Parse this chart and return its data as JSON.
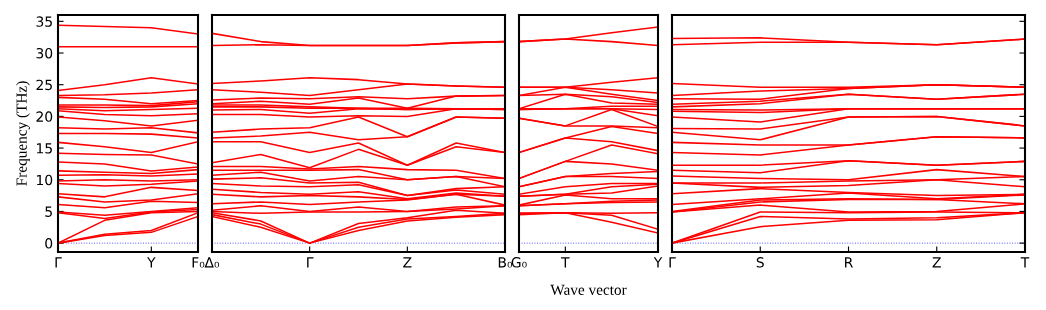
{
  "chart_data": [
    {
      "type": "line",
      "ylabel": "Frequency (THz)",
      "ylim": [
        -1.4,
        36
      ],
      "yticks": [
        0,
        5,
        10,
        15,
        20,
        25,
        30,
        35
      ],
      "categories": [
        "Γ",
        null,
        "Y",
        "F₀"
      ],
      "ref_lines": [
        {
          "axis": "y",
          "value": 0,
          "label": null,
          "color": "#4d4dff",
          "line_style": "dotted"
        }
      ],
      "series": [
        {
          "color": "#ff0000",
          "values": [
            0,
            1.2,
            1.7,
            4.2
          ]
        },
        {
          "color": "#ff0000",
          "values": [
            0,
            1.4,
            2.0,
            4.8
          ]
        },
        {
          "color": "#ff0000",
          "values": [
            0,
            3.6,
            4.8,
            5.0
          ]
        },
        {
          "color": "#ff0000",
          "values": [
            4.8,
            3.9,
            4.9,
            5.3
          ]
        },
        {
          "color": "#ff0000",
          "values": [
            4.9,
            4.4,
            5.0,
            5.6
          ]
        },
        {
          "color": "#ff0000",
          "values": [
            6.1,
            5.6,
            6.6,
            6.4
          ]
        },
        {
          "color": "#ff0000",
          "values": [
            7.3,
            6.5,
            6.8,
            7.8
          ]
        },
        {
          "color": "#ff0000",
          "values": [
            7.8,
            7.3,
            8.8,
            8.3
          ]
        },
        {
          "color": "#ff0000",
          "values": [
            9.4,
            9.0,
            9.3,
            9.8
          ]
        },
        {
          "color": "#ff0000",
          "values": [
            9.8,
            10.0,
            9.8,
            10.0
          ]
        },
        {
          "color": "#ff0000",
          "values": [
            10.7,
            10.8,
            10.6,
            10.9
          ]
        },
        {
          "color": "#ff0000",
          "values": [
            11.4,
            11.2,
            11.0,
            11.6
          ]
        },
        {
          "color": "#ff0000",
          "values": [
            12.8,
            12.5,
            11.4,
            12.0
          ]
        },
        {
          "color": "#ff0000",
          "values": [
            14.2,
            14.0,
            13.9,
            12.5
          ]
        },
        {
          "color": "#ff0000",
          "values": [
            15.9,
            15.2,
            14.3,
            16.0
          ]
        },
        {
          "color": "#ff0000",
          "values": [
            17.3,
            17.3,
            17.2,
            16.6
          ]
        },
        {
          "color": "#ff0000",
          "values": [
            18.2,
            18.0,
            18.2,
            17.4
          ]
        },
        {
          "color": "#ff0000",
          "values": [
            19.9,
            19.3,
            18.5,
            19.4
          ]
        },
        {
          "color": "#ff0000",
          "values": [
            20.9,
            20.3,
            20.1,
            20.4
          ]
        },
        {
          "color": "#ff0000",
          "values": [
            21.2,
            20.9,
            21.1,
            21.3
          ]
        },
        {
          "color": "#ff0000",
          "values": [
            21.5,
            21.4,
            21.5,
            22.0
          ]
        },
        {
          "color": "#ff0000",
          "values": [
            21.8,
            21.8,
            21.7,
            22.3
          ]
        },
        {
          "color": "#ff0000",
          "values": [
            23.0,
            22.7,
            22.0,
            22.5
          ]
        },
        {
          "color": "#ff0000",
          "values": [
            23.3,
            23.4,
            23.7,
            24.2
          ]
        },
        {
          "color": "#ff0000",
          "values": [
            24.1,
            25.0,
            26.1,
            25.1
          ]
        },
        {
          "color": "#ff0000",
          "values": [
            31.0,
            31.0,
            31.0,
            31.0
          ]
        },
        {
          "color": "#ff0000",
          "values": [
            34.4,
            34.2,
            34.0,
            33.0
          ]
        }
      ]
    },
    {
      "type": "line",
      "ylim": [
        -1.4,
        36
      ],
      "tick_labels": "x",
      "categories": [
        "Δ₀",
        null,
        "Γ",
        null,
        "Z",
        null,
        "B₀"
      ],
      "ref_lines": [
        {
          "axis": "y",
          "value": 0,
          "label": null,
          "color": "#4d4dff",
          "line_style": "dotted"
        }
      ],
      "series": [
        {
          "color": "#ff0000",
          "values": [
            4.2,
            2.5,
            0,
            2.0,
            3.5,
            4.1,
            4.5
          ]
        },
        {
          "color": "#ff0000",
          "values": [
            4.5,
            3.0,
            0,
            2.5,
            3.8,
            4.2,
            4.7
          ]
        },
        {
          "color": "#ff0000",
          "values": [
            4.8,
            3.5,
            0,
            3.1,
            4.0,
            5.2,
            4.7
          ]
        },
        {
          "color": "#ff0000",
          "values": [
            5.0,
            4.7,
            4.9,
            4.9,
            5.0,
            5.4,
            5.9
          ]
        },
        {
          "color": "#ff0000",
          "values": [
            5.2,
            5.9,
            5.0,
            5.7,
            5.0,
            5.7,
            5.9
          ]
        },
        {
          "color": "#ff0000",
          "values": [
            6.2,
            6.5,
            6.1,
            6.5,
            6.8,
            7.7,
            6.0
          ]
        },
        {
          "color": "#ff0000",
          "values": [
            7.7,
            7.3,
            7.5,
            7.3,
            6.9,
            7.7,
            7.4
          ]
        },
        {
          "color": "#ff0000",
          "values": [
            8.5,
            8.0,
            7.7,
            8.1,
            7.0,
            7.9,
            7.4
          ]
        },
        {
          "color": "#ff0000",
          "values": [
            9.4,
            9.0,
            8.9,
            9.2,
            7.5,
            8.4,
            7.7
          ]
        },
        {
          "color": "#ff0000",
          "values": [
            10.1,
            10.3,
            9.5,
            9.6,
            7.5,
            8.6,
            8.9
          ]
        },
        {
          "color": "#ff0000",
          "values": [
            10.7,
            11.2,
            9.8,
            10.5,
            10.0,
            10.5,
            8.9
          ]
        },
        {
          "color": "#ff0000",
          "values": [
            11.5,
            11.5,
            11.5,
            11.6,
            10.0,
            10.5,
            10.2
          ]
        },
        {
          "color": "#ff0000",
          "values": [
            12.1,
            12.1,
            11.7,
            12.1,
            11.6,
            11.5,
            10.2
          ]
        },
        {
          "color": "#ff0000",
          "values": [
            12.7,
            14.0,
            11.9,
            14.8,
            12.3,
            15.2,
            14.3
          ]
        },
        {
          "color": "#ff0000",
          "values": [
            16.0,
            16.0,
            14.3,
            15.8,
            12.3,
            15.8,
            14.3
          ]
        },
        {
          "color": "#ff0000",
          "values": [
            16.6,
            16.9,
            17.5,
            16.3,
            16.8,
            19.9,
            19.7
          ]
        },
        {
          "color": "#ff0000",
          "values": [
            17.5,
            18.0,
            18.2,
            19.9,
            16.8,
            19.9,
            19.7
          ]
        },
        {
          "color": "#ff0000",
          "values": [
            20.3,
            20.3,
            19.9,
            20.1,
            20.0,
            21.2,
            21.1
          ]
        },
        {
          "color": "#ff0000",
          "values": [
            21.0,
            21.1,
            20.5,
            21.2,
            21.1,
            21.2,
            21.1
          ]
        },
        {
          "color": "#ff0000",
          "values": [
            21.5,
            21.5,
            21.3,
            21.3,
            21.1,
            21.2,
            21.2
          ]
        },
        {
          "color": "#ff0000",
          "values": [
            21.8,
            21.8,
            21.5,
            21.3,
            21.3,
            21.2,
            21.2
          ]
        },
        {
          "color": "#ff0000",
          "values": [
            22.0,
            22.4,
            21.9,
            22.9,
            21.3,
            23.2,
            23.3
          ]
        },
        {
          "color": "#ff0000",
          "values": [
            22.6,
            22.9,
            22.8,
            23.1,
            22.8,
            23.2,
            23.3
          ]
        },
        {
          "color": "#ff0000",
          "values": [
            24.2,
            23.8,
            23.3,
            24.2,
            25.1,
            24.8,
            24.6
          ]
        },
        {
          "color": "#ff0000",
          "values": [
            25.2,
            25.6,
            26.1,
            25.8,
            25.1,
            24.8,
            24.6
          ]
        },
        {
          "color": "#ff0000",
          "values": [
            31.2,
            31.3,
            31.2,
            31.2,
            31.2,
            31.6,
            31.8
          ]
        },
        {
          "color": "#ff0000",
          "values": [
            33.1,
            31.8,
            31.2,
            31.2,
            31.2,
            31.6,
            31.8
          ]
        }
      ]
    },
    {
      "type": "line",
      "xlabel": "Wave vector",
      "ylim": [
        -1.4,
        36
      ],
      "tick_labels": "x",
      "categories": [
        "G₀",
        "T",
        null,
        "Y"
      ],
      "ref_lines": [
        {
          "axis": "y",
          "value": 0,
          "label": null,
          "color": "#4d4dff",
          "line_style": "dotted"
        }
      ],
      "series": [
        {
          "color": "#ff0000",
          "values": [
            4.5,
            4.8,
            3.3,
            1.6
          ]
        },
        {
          "color": "#ff0000",
          "values": [
            4.7,
            4.8,
            4.4,
            2.2
          ]
        },
        {
          "color": "#ff0000",
          "values": [
            4.7,
            4.8,
            4.7,
            4.8
          ]
        },
        {
          "color": "#ff0000",
          "values": [
            5.9,
            6.2,
            6.4,
            6.5
          ]
        },
        {
          "color": "#ff0000",
          "values": [
            5.9,
            6.2,
            6.6,
            6.8
          ]
        },
        {
          "color": "#ff0000",
          "values": [
            6.0,
            7.6,
            7.0,
            7.0
          ]
        },
        {
          "color": "#ff0000",
          "values": [
            7.4,
            7.7,
            7.9,
            9.0
          ]
        },
        {
          "color": "#ff0000",
          "values": [
            7.4,
            7.7,
            8.9,
            9.3
          ]
        },
        {
          "color": "#ff0000",
          "values": [
            7.7,
            8.9,
            9.4,
            9.4
          ]
        },
        {
          "color": "#ff0000",
          "values": [
            8.9,
            10.5,
            10.5,
            10.2
          ]
        },
        {
          "color": "#ff0000",
          "values": [
            8.9,
            10.5,
            11.0,
            11.3
          ]
        },
        {
          "color": "#ff0000",
          "values": [
            10.2,
            12.9,
            12.5,
            11.5
          ]
        },
        {
          "color": "#ff0000",
          "values": [
            10.2,
            12.9,
            15.5,
            14.1
          ]
        },
        {
          "color": "#ff0000",
          "values": [
            14.3,
            16.6,
            16.0,
            14.6
          ]
        },
        {
          "color": "#ff0000",
          "values": [
            14.3,
            16.6,
            18.4,
            17.3
          ]
        },
        {
          "color": "#ff0000",
          "values": [
            19.7,
            18.5,
            18.5,
            18.2
          ]
        },
        {
          "color": "#ff0000",
          "values": [
            19.7,
            18.5,
            21.1,
            18.4
          ]
        },
        {
          "color": "#ff0000",
          "values": [
            21.1,
            21.2,
            21.2,
            20.1
          ]
        },
        {
          "color": "#ff0000",
          "values": [
            21.1,
            21.2,
            21.2,
            21.1
          ]
        },
        {
          "color": "#ff0000",
          "values": [
            21.2,
            21.2,
            21.6,
            21.6
          ]
        },
        {
          "color": "#ff0000",
          "values": [
            21.2,
            23.5,
            22.1,
            21.9
          ]
        },
        {
          "color": "#ff0000",
          "values": [
            23.3,
            23.5,
            23.1,
            22.2
          ]
        },
        {
          "color": "#ff0000",
          "values": [
            23.3,
            24.6,
            23.5,
            22.5
          ]
        },
        {
          "color": "#ff0000",
          "values": [
            24.6,
            24.6,
            24.2,
            23.7
          ]
        },
        {
          "color": "#ff0000",
          "values": [
            24.6,
            24.6,
            25.4,
            26.1
          ]
        },
        {
          "color": "#ff0000",
          "values": [
            31.8,
            32.2,
            31.8,
            31.2
          ]
        },
        {
          "color": "#ff0000",
          "values": [
            31.8,
            32.2,
            33.2,
            34.1
          ]
        }
      ]
    },
    {
      "type": "line",
      "ylim": [
        -1.4,
        36
      ],
      "tick_labels": "x",
      "categories": [
        "Γ",
        "S",
        "R",
        "Z",
        "T"
      ],
      "ref_lines": [
        {
          "axis": "y",
          "value": 0,
          "label": null,
          "color": "#4d4dff",
          "line_style": "dotted"
        }
      ],
      "series": [
        {
          "color": "#ff0000",
          "values": [
            0,
            2.6,
            3.6,
            3.7,
            4.8
          ]
        },
        {
          "color": "#ff0000",
          "values": [
            0,
            4.2,
            3.8,
            4.0,
            4.8
          ]
        },
        {
          "color": "#ff0000",
          "values": [
            0,
            4.9,
            4.8,
            4.9,
            4.8
          ]
        },
        {
          "color": "#ff0000",
          "values": [
            4.9,
            6.0,
            4.9,
            5.0,
            6.2
          ]
        },
        {
          "color": "#ff0000",
          "values": [
            4.9,
            6.5,
            6.9,
            6.9,
            6.2
          ]
        },
        {
          "color": "#ff0000",
          "values": [
            5.0,
            6.8,
            7.0,
            6.9,
            7.6
          ]
        },
        {
          "color": "#ff0000",
          "values": [
            6.1,
            7.0,
            7.9,
            7.0,
            7.7
          ]
        },
        {
          "color": "#ff0000",
          "values": [
            7.8,
            8.6,
            8.0,
            7.5,
            7.7
          ]
        },
        {
          "color": "#ff0000",
          "values": [
            9.5,
            8.8,
            9.1,
            10.0,
            8.9
          ]
        },
        {
          "color": "#ff0000",
          "values": [
            9.5,
            9.5,
            9.8,
            10.0,
            10.5
          ]
        },
        {
          "color": "#ff0000",
          "values": [
            10.6,
            10.2,
            10.0,
            11.6,
            10.5
          ]
        },
        {
          "color": "#ff0000",
          "values": [
            11.5,
            11.1,
            13.0,
            12.3,
            12.9
          ]
        },
        {
          "color": "#ff0000",
          "values": [
            12.3,
            12.3,
            13.0,
            12.3,
            12.9
          ]
        },
        {
          "color": "#ff0000",
          "values": [
            14.3,
            13.9,
            15.5,
            16.8,
            16.6
          ]
        },
        {
          "color": "#ff0000",
          "values": [
            15.9,
            15.5,
            15.5,
            16.8,
            16.6
          ]
        },
        {
          "color": "#ff0000",
          "values": [
            17.5,
            16.3,
            19.9,
            20.0,
            18.5
          ]
        },
        {
          "color": "#ff0000",
          "values": [
            18.1,
            18.0,
            19.9,
            20.0,
            18.5
          ]
        },
        {
          "color": "#ff0000",
          "values": [
            19.9,
            19.1,
            21.2,
            21.2,
            21.2
          ]
        },
        {
          "color": "#ff0000",
          "values": [
            20.8,
            20.6,
            21.2,
            21.2,
            21.2
          ]
        },
        {
          "color": "#ff0000",
          "values": [
            21.1,
            21.0,
            21.2,
            21.2,
            21.2
          ]
        },
        {
          "color": "#ff0000",
          "values": [
            21.5,
            22.0,
            23.5,
            22.7,
            23.5
          ]
        },
        {
          "color": "#ff0000",
          "values": [
            21.9,
            22.4,
            23.5,
            22.7,
            23.5
          ]
        },
        {
          "color": "#ff0000",
          "values": [
            22.8,
            22.7,
            24.4,
            25.0,
            24.6
          ]
        },
        {
          "color": "#ff0000",
          "values": [
            23.3,
            24.0,
            24.4,
            25.0,
            24.6
          ]
        },
        {
          "color": "#ff0000",
          "values": [
            25.2,
            24.6,
            24.6,
            25.0,
            24.6
          ]
        },
        {
          "color": "#ff0000",
          "values": [
            31.3,
            31.7,
            31.7,
            31.3,
            32.2
          ]
        },
        {
          "color": "#ff0000",
          "values": [
            32.3,
            32.4,
            31.7,
            31.3,
            32.2
          ]
        }
      ]
    }
  ]
}
